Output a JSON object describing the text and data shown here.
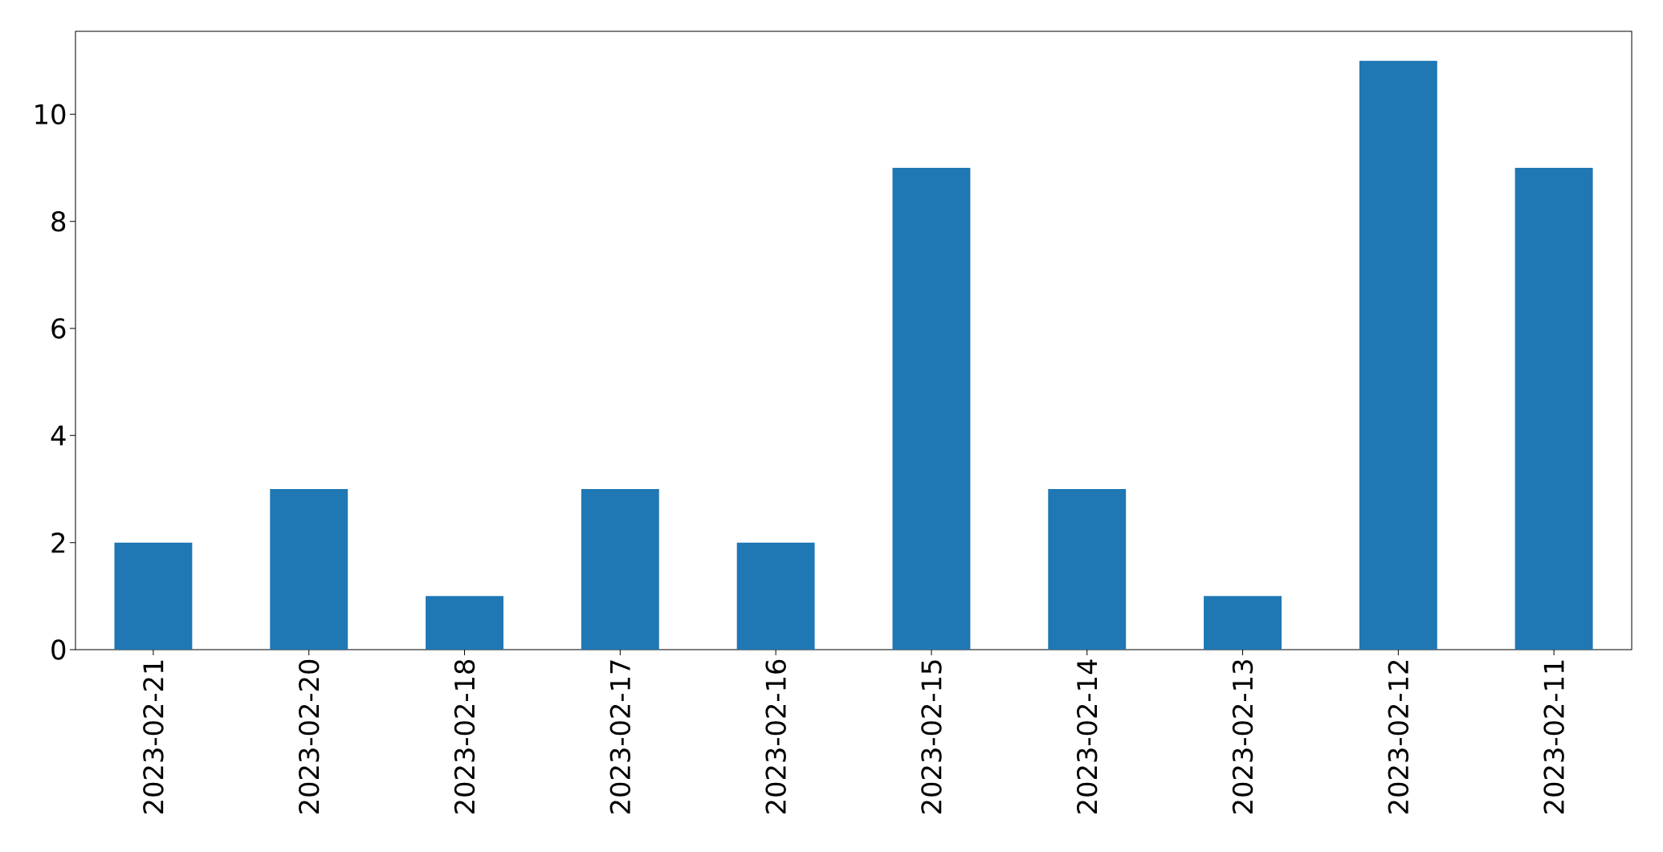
{
  "chart_data": {
    "type": "bar",
    "categories": [
      "2023-02-21",
      "2023-02-20",
      "2023-02-18",
      "2023-02-17",
      "2023-02-16",
      "2023-02-15",
      "2023-02-14",
      "2023-02-13",
      "2023-02-12",
      "2023-02-11"
    ],
    "values": [
      2,
      3,
      1,
      3,
      2,
      9,
      3,
      1,
      11,
      9
    ],
    "color": "#1f77b4",
    "ylim": [
      0,
      11.55
    ],
    "yticks": [
      0,
      2,
      4,
      6,
      8,
      10
    ]
  }
}
